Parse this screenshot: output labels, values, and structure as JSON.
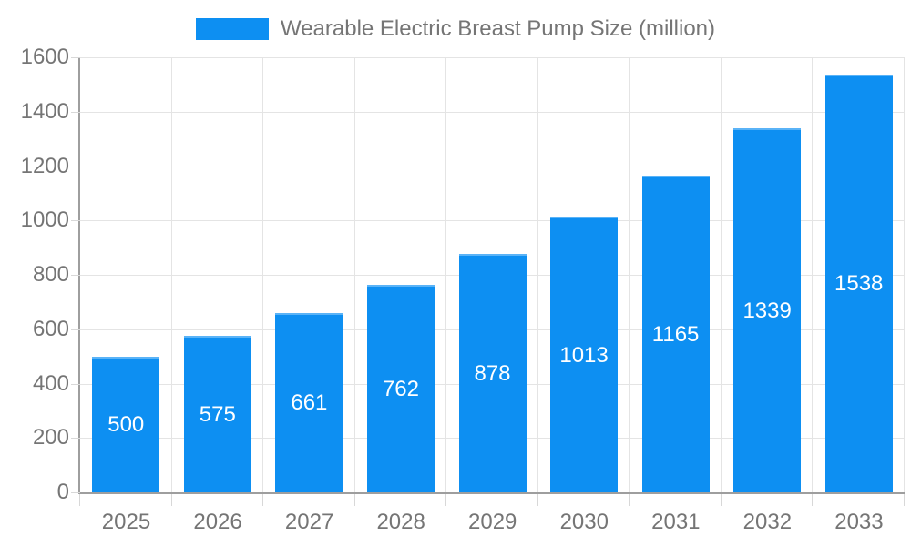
{
  "legend": {
    "label": "Wearable Electric Breast Pump Size (million)"
  },
  "chart_data": {
    "type": "bar",
    "title": "Wearable Electric Breast Pump Size (million)",
    "categories": [
      "2025",
      "2026",
      "2027",
      "2028",
      "2029",
      "2030",
      "2031",
      "2032",
      "2033"
    ],
    "values": [
      500,
      575,
      661,
      762,
      878,
      1013,
      1165,
      1339,
      1538
    ],
    "xlabel": "",
    "ylabel": "",
    "ylim": [
      0,
      1600
    ],
    "ytick_step": 200,
    "yticks": [
      0,
      200,
      400,
      600,
      800,
      1000,
      1200,
      1400,
      1600
    ],
    "grid": true,
    "legend_position": "top-center",
    "value_labels": "inside-center",
    "colors": {
      "bar": "#0d8ff2",
      "bar_border": "#5ab3f7",
      "axis_line": "#9e9e9e",
      "grid_line": "#e4e4e4",
      "tick_line": "#d8d8d8",
      "axis_text": "#757575",
      "value_text": "#ffffff",
      "background": "#ffffff"
    }
  }
}
